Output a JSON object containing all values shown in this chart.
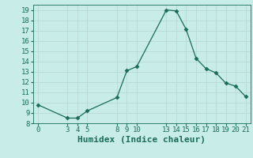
{
  "x": [
    0,
    3,
    4,
    5,
    8,
    9,
    10,
    13,
    14,
    15,
    16,
    17,
    18,
    19,
    20,
    21
  ],
  "y": [
    9.8,
    8.5,
    8.5,
    9.2,
    10.5,
    13.1,
    13.5,
    19.0,
    18.9,
    17.1,
    14.3,
    13.3,
    12.9,
    11.9,
    11.6,
    10.6
  ],
  "xlim": [
    -0.5,
    21.5
  ],
  "ylim": [
    8,
    19.5
  ],
  "xticks": [
    0,
    3,
    4,
    5,
    8,
    9,
    10,
    13,
    14,
    15,
    16,
    17,
    18,
    19,
    20,
    21
  ],
  "yticks": [
    8,
    9,
    10,
    11,
    12,
    13,
    14,
    15,
    16,
    17,
    18,
    19
  ],
  "xlabel": "Humidex (Indice chaleur)",
  "line_color": "#1a6b5a",
  "marker": "D",
  "marker_size": 2.5,
  "bg_color": "#c8ece8",
  "grid_color": "#b8d8d4",
  "tick_fontsize": 6.5,
  "xlabel_fontsize": 8,
  "xlabel_fontweight": "bold",
  "font_family": "monospace"
}
